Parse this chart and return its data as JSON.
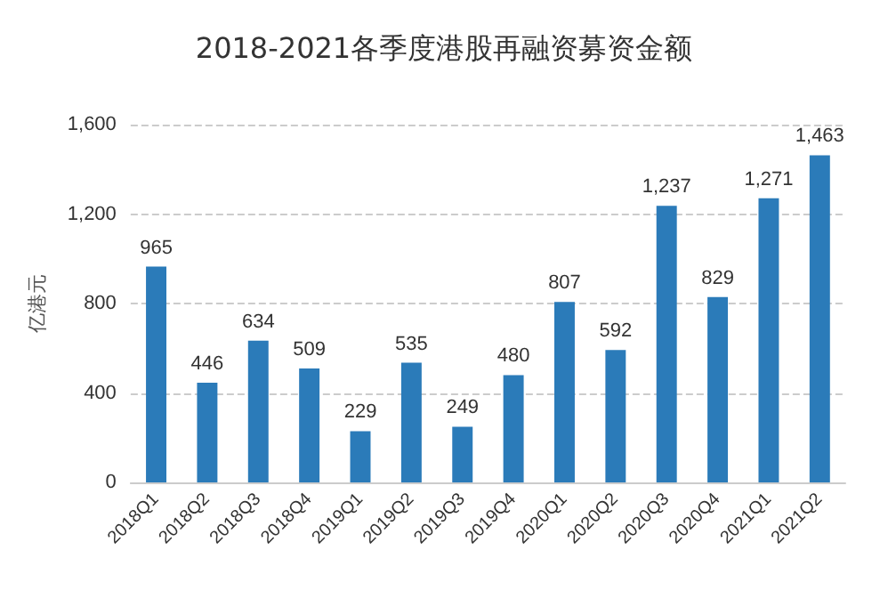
{
  "chart_data": {
    "type": "bar",
    "title": "2018-2021各季度港股再融资募资金额",
    "ylabel": "亿港元",
    "categories": [
      "2018Q1",
      "2018Q2",
      "2018Q3",
      "2018Q4",
      "2019Q1",
      "2019Q2",
      "2019Q3",
      "2019Q4",
      "2020Q1",
      "2020Q2",
      "2020Q3",
      "2020Q4",
      "2021Q1",
      "2021Q2"
    ],
    "values": [
      965,
      446,
      634,
      509,
      229,
      535,
      249,
      480,
      807,
      592,
      1237,
      829,
      1271,
      1463
    ],
    "value_labels": [
      "965",
      "446",
      "634",
      "509",
      "229",
      "535",
      "249",
      "480",
      "807",
      "592",
      "1,237",
      "829",
      "1,271",
      "1,463"
    ],
    "color": "#2b7bb9",
    "ylim": [
      0,
      1600
    ],
    "yticks": [
      0,
      400,
      800,
      {
        "value": 1200,
        "label": "1,200"
      },
      {
        "value": 1600,
        "label": "1,600"
      }
    ],
    "grid": "y"
  }
}
